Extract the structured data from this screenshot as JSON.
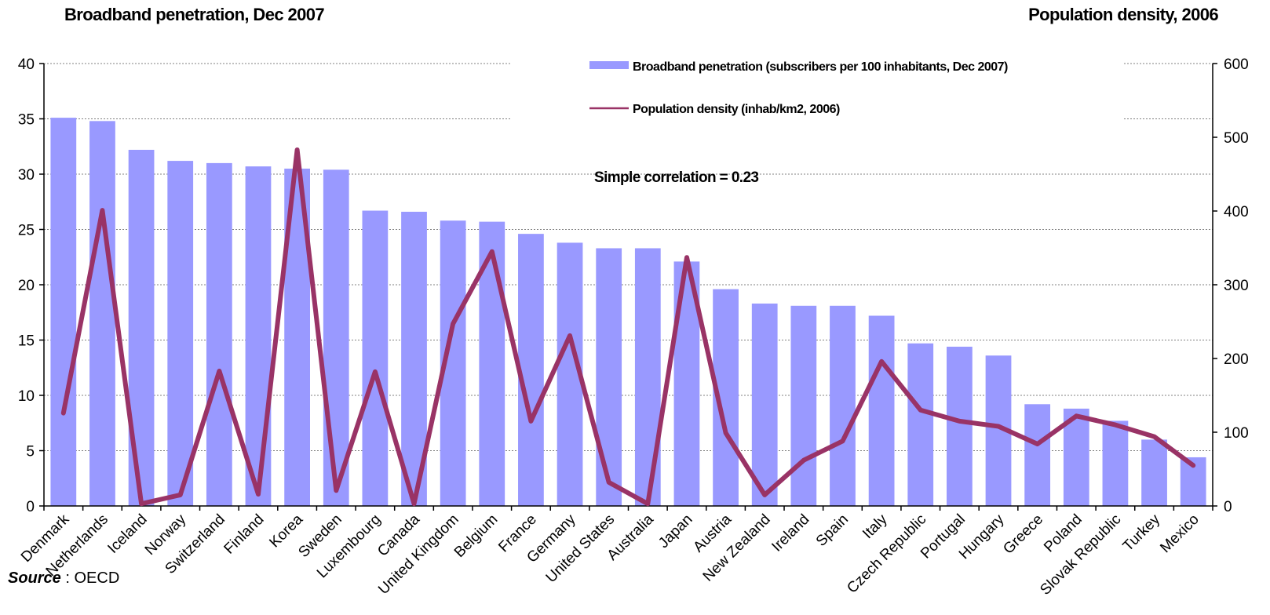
{
  "titles": {
    "left": "Broadband penetration, Dec 2007",
    "right": "Population density, 2006"
  },
  "source": {
    "label": "Source",
    "separator": " : ",
    "value": "OECD"
  },
  "colors": {
    "bar": "#9999ff",
    "line": "#993366",
    "grid": "#808080",
    "axis": "#000000"
  },
  "chart_data": {
    "type": "bar",
    "categories": [
      "Denmark",
      "Netherlands",
      "Iceland",
      "Norway",
      "Switzerland",
      "Finland",
      "Korea",
      "Sweden",
      "Luxembourg",
      "Canada",
      "United Kingdom",
      "Belgium",
      "France",
      "Germany",
      "United States",
      "Australia",
      "Japan",
      "Austria",
      "New Zealand",
      "Ireland",
      "Spain",
      "Italy",
      "Czech Republic",
      "Portugal",
      "Hungary",
      "Greece",
      "Poland",
      "Slovak Republic",
      "Turkey",
      "Mexico"
    ],
    "series": [
      {
        "name": "Broadband penetration (subscribers per 100 inhabitants, Dec 2007)",
        "type": "bar",
        "axis": "left",
        "values": [
          35.1,
          34.8,
          32.2,
          31.2,
          31.0,
          30.7,
          30.5,
          30.4,
          26.7,
          26.6,
          25.8,
          25.7,
          24.6,
          23.8,
          23.3,
          23.3,
          22.1,
          19.6,
          18.3,
          18.1,
          18.1,
          17.2,
          14.7,
          14.4,
          13.6,
          9.2,
          8.8,
          7.7,
          6.0,
          4.4
        ]
      },
      {
        "name": "Population density (inhab/km2, 2006)",
        "type": "line",
        "axis": "right",
        "values": [
          126,
          401,
          3,
          15,
          183,
          16,
          483,
          21,
          182,
          3,
          247,
          345,
          115,
          231,
          32,
          3,
          337,
          99,
          15,
          62,
          88,
          196,
          130,
          115,
          108,
          84,
          122,
          110,
          94,
          55
        ]
      }
    ],
    "y_left": {
      "min": 0,
      "max": 40,
      "ticks": [
        0,
        5,
        10,
        15,
        20,
        25,
        30,
        35,
        40
      ]
    },
    "y_right": {
      "min": 0,
      "max": 600,
      "ticks": [
        0,
        100,
        200,
        300,
        400,
        500,
        600
      ]
    },
    "grid": true,
    "legend_position": "top-center",
    "annotation": "Simple correlation = 0.23"
  }
}
